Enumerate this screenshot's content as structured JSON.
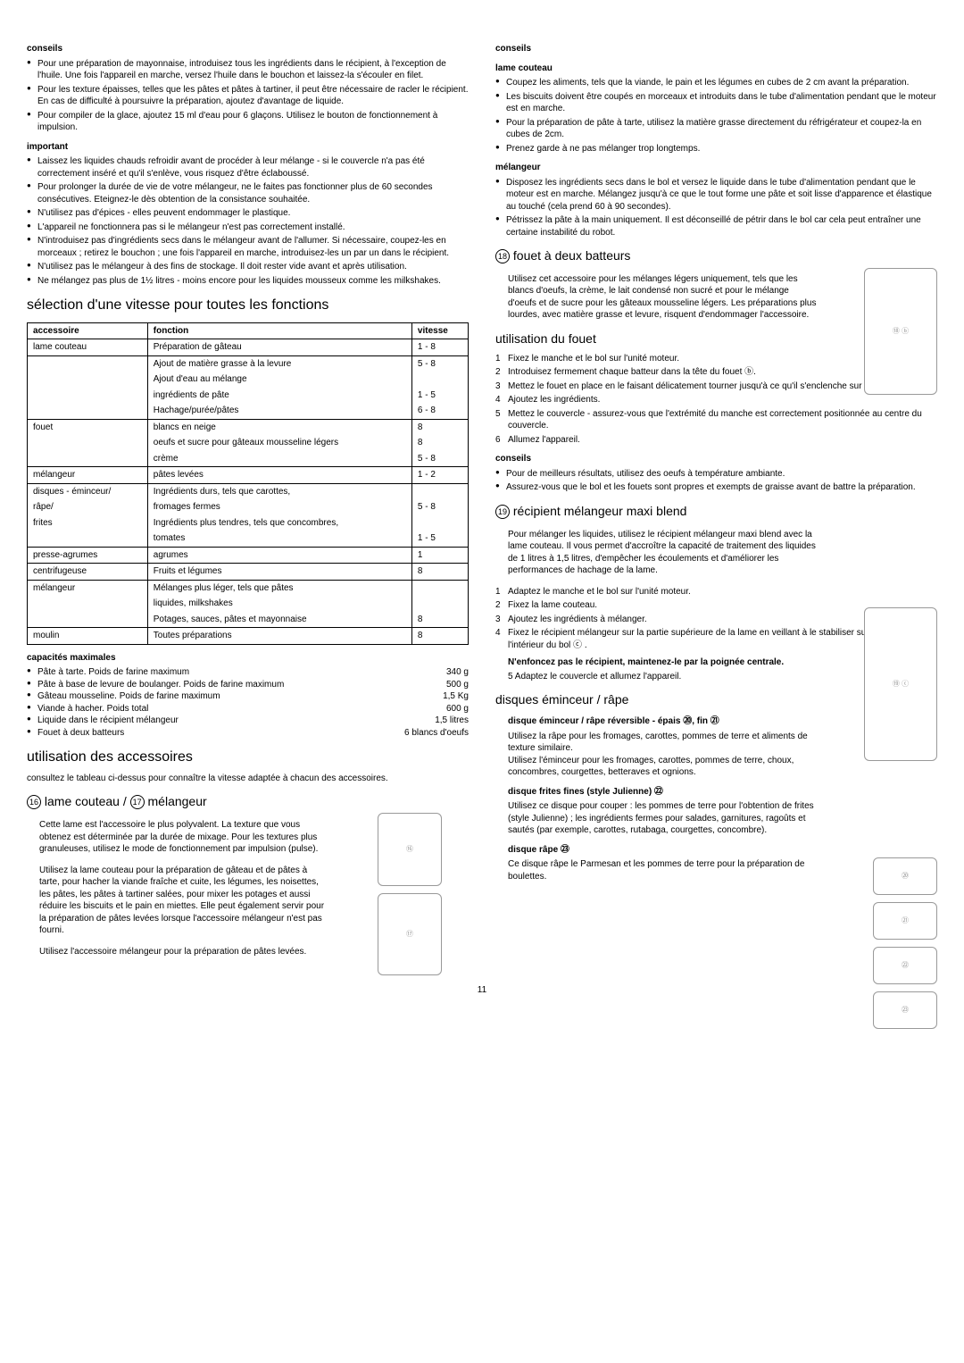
{
  "page_number": "11",
  "left": {
    "conseils_title": "conseils",
    "conseils_items": [
      "Pour une préparation de mayonnaise, introduisez tous les ingrédients dans le récipient, à l'exception de l'huile. Une fois l'appareil en marche, versez l'huile dans le bouchon et laissez-la s'écouler en filet.",
      "Pour les texture épaisses, telles que les pâtes et pâtes à tartiner, il peut être nécessaire de racler le récipient. En cas de difficulté à poursuivre la préparation, ajoutez d'avantage de liquide.",
      "Pour compiler de la glace, ajoutez 15 ml d'eau pour 6 glaçons. Utilisez le bouton de fonctionnement à impulsion."
    ],
    "important_title": "important",
    "important_items": [
      "Laissez les liquides chauds refroidir avant de procéder à leur mélange - si le couvercle n'a pas été correctement inséré et qu'il s'enlève, vous risquez d'être éclaboussé.",
      "Pour prolonger la durée de vie de votre mélangeur, ne le faites pas fonctionner plus de 60 secondes consécutives. Eteignez-le dès obtention de la consistance souhaitée.",
      "N'utilisez pas d'épices - elles peuvent endommager le plastique.",
      "L'appareil ne fonctionnera pas si le mélangeur n'est pas correctement installé.",
      "N'introduisez pas d'ingrédients secs dans le mélangeur avant de l'allumer. Si nécessaire, coupez-les en morceaux ; retirez le bouchon ; une fois l'appareil en marche, introduisez-les un par un dans le récipient.",
      "N'utilisez pas le mélangeur à des fins de stockage. Il doit rester vide avant et après utilisation.",
      "Ne mélangez pas plus de 1½ litres - moins encore pour les liquides mousseux comme les milkshakes."
    ],
    "speed_title": "sélection d'une vitesse pour toutes les fonctions",
    "table": {
      "headers": [
        "accessoire",
        "fonction",
        "vitesse"
      ],
      "rows": [
        [
          "lame couteau",
          "Préparation de gâteau",
          "1 - 8"
        ],
        [
          "",
          "Ajout de matière grasse à la levure",
          "5 - 8"
        ],
        [
          "",
          "Ajout d'eau au mélange",
          ""
        ],
        [
          "",
          "ingrédients de pâte",
          "1 - 5"
        ],
        [
          "",
          "Hachage/purée/pâtes",
          "6 - 8"
        ],
        [
          "fouet",
          "blancs en neige",
          "8"
        ],
        [
          "",
          "oeufs et sucre pour gâteaux mousseline légers",
          "8"
        ],
        [
          "",
          "crème",
          "5 - 8"
        ],
        [
          "mélangeur",
          "pâtes levées",
          "1 - 2"
        ],
        [
          "disques - éminceur/",
          "Ingrédients durs, tels que carottes,",
          ""
        ],
        [
          "râpe/",
          "fromages fermes",
          "5 - 8"
        ],
        [
          "frites",
          "Ingrédients plus tendres, tels que concombres,",
          ""
        ],
        [
          "",
          "tomates",
          "1 - 5"
        ],
        [
          "presse-agrumes",
          "agrumes",
          "1"
        ],
        [
          "centrifugeuse",
          "Fruits et légumes",
          "8"
        ],
        [
          "mélangeur",
          "Mélanges plus léger, tels que pâtes",
          ""
        ],
        [
          "",
          "liquides, milkshakes",
          ""
        ],
        [
          "",
          "Potages, sauces, pâtes et mayonnaise",
          "8"
        ],
        [
          "moulin",
          "Toutes préparations",
          "8"
        ]
      ],
      "row_borders": [
        true,
        false,
        false,
        false,
        true,
        false,
        false,
        true,
        true,
        false,
        false,
        false,
        true,
        true,
        true,
        false,
        false,
        true,
        true
      ]
    },
    "capmax_title": "capacités maximales",
    "capmax": [
      [
        "Pâte à tarte. Poids de farine maximum",
        "340 g"
      ],
      [
        "Pâte à base de levure de boulanger. Poids de farine maximum",
        "500 g"
      ],
      [
        "Gâteau mousseline. Poids de farine maximum",
        "1,5 Kg"
      ],
      [
        "Viande à hacher. Poids total",
        "600 g"
      ],
      [
        "Liquide dans le récipient mélangeur",
        "1,5 litres"
      ],
      [
        "Fouet à deux batteurs",
        "6 blancs d'oeufs"
      ]
    ],
    "acc_title": "utilisation des accessoires",
    "acc_text": "consultez le tableau ci-dessus pour connaître la vitesse adaptée à chacun des accessoires.",
    "lame_num1": "16",
    "lame_title1": "lame couteau /",
    "lame_num2": "17",
    "lame_title2": "mélangeur",
    "lame_p1": "Cette lame est l'accessoire le plus polyvalent. La texture que vous obtenez est déterminée par la durée de mixage. Pour les textures plus granuleuses, utilisez le mode de fonctionnement par impulsion (pulse).",
    "lame_p2": "Utilisez la lame couteau pour la préparation de gâteau et de pâtes à tarte, pour hacher la viande fraîche et cuite, les légumes, les noisettes, les pâtes, les pâtes à tartiner salées, pour mixer les potages et aussi réduire les biscuits et le pain en miettes. Elle peut également servir pour la préparation de pâtes levées lorsque l'accessoire mélangeur n'est pas fourni.",
    "lame_p3": "Utilisez l'accessoire mélangeur pour la préparation de pâtes levées."
  },
  "right": {
    "conseils_title": "conseils",
    "lame_couteau_title": "lame couteau",
    "lame_couteau_items": [
      "Coupez les aliments, tels que la viande, le pain et les légumes en cubes de 2 cm avant la préparation.",
      "Les biscuits doivent être coupés en morceaux et introduits dans le tube d'alimentation pendant que le moteur est en marche.",
      "Pour la préparation de pâte à tarte, utilisez la matière grasse directement du réfrigérateur et coupez-la en cubes de 2cm.",
      "Prenez garde à ne pas mélanger trop longtemps."
    ],
    "melangeur_title": "mélangeur",
    "melangeur_items": [
      "Disposez les ingrédients secs dans le bol et versez le liquide dans le tube d'alimentation pendant que le moteur est en marche. Mélangez jusqu'à ce que le tout forme une pâte et soit lisse d'apparence et élastique au touché (cela prend 60 à 90 secondes).",
      "Pétrissez la pâte à la main uniquement. Il est déconseillé de pétrir dans le bol car cela peut entraîner une certaine instabilité du robot."
    ],
    "fouet_num": "18",
    "fouet_title": "fouet à deux batteurs",
    "fouet_p": "Utilisez cet accessoire pour les mélanges légers uniquement, tels que les blancs d'oeufs, la crème, le lait condensé non sucré et pour le mélange d'oeufs et de sucre pour les gâteaux mousseline légers. Les préparations plus lourdes, avec matière grasse et levure, risquent d'endommager l'accessoire.",
    "util_title": "utilisation du fouet",
    "util_steps": [
      "Fixez le manche et le bol sur l'unité moteur.",
      "Introduisez fermement chaque batteur dans la tête du fouet ⓑ.",
      "Mettez le fouet en place en le faisant délicatement tourner jusqu'à ce qu'il s'enclenche sur le manche.",
      "Ajoutez les ingrédients.",
      "Mettez le couvercle - assurez-vous que l'extrémité du manche est correctement positionnée au centre du couvercle.",
      "Allumez l'appareil."
    ],
    "fouet_conseils_title": "conseils",
    "fouet_conseils_items": [
      "Pour de meilleurs résultats, utilisez des oeufs à température ambiante.",
      "Assurez-vous que le bol et les fouets sont propres et exempts de graisse avant de battre la préparation."
    ],
    "maxi_num": "19",
    "maxi_title": "récipient mélangeur maxi blend",
    "maxi_p": "Pour mélanger les liquides, utilisez le récipient mélangeur maxi blend avec la lame couteau. Il vous permet d'accroître la capacité de traitement des liquides de 1 litres à 1,5 litres, d'empêcher les écoulements et d'améliorer les performances de hachage de la lame.",
    "maxi_steps": [
      "Adaptez le manche et le bol sur l'unité moteur.",
      "Fixez la lame couteau.",
      "Ajoutez les ingrédients à mélanger.",
      "Fixez le récipient mélangeur sur la partie supérieure de la lame en veillant à le stabiliser sur le socle à l'intérieur du bol ⓒ ."
    ],
    "maxi_bold": "N'enfoncez pas le récipient, maintenez-le par la poignée centrale.",
    "maxi_step5": "Adaptez le couvercle et allumez l'appareil.",
    "disques_title": "disques éminceur / râpe",
    "d1_title": "disque éminceur / râpe réversible - épais ⑳, fin ㉑",
    "d1_p1": "Utilisez la râpe pour les fromages, carottes, pommes de terre et aliments de texture similaire.",
    "d1_p2": "Utilisez l'éminceur pour les fromages, carottes, pommes de terre, choux, concombres, courgettes, betteraves et ognions.",
    "d2_title": "disque frites fines (style Julienne) ㉒",
    "d2_p": "Utilisez ce disque pour couper : les pommes de terre pour l'obtention de frites (style Julienne) ; les ingrédients fermes pour salades, garnitures, ragoûts et sautés (par exemple, carottes, rutabaga, courgettes, concombre).",
    "d3_title": "disque râpe ㉓",
    "d3_p": "Ce disque râpe le Parmesan et les pommes de terre pour la préparation de boulettes."
  }
}
